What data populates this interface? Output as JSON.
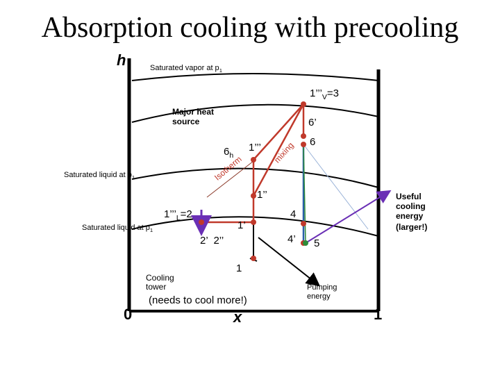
{
  "title": "Absorption cooling with precooling",
  "axes": {
    "y_label": "h",
    "x_label": "x",
    "x_min": "0",
    "x_max": "1"
  },
  "labels": {
    "sat_vapor": "Saturated vapor at p",
    "sat_vapor_sub": "1",
    "sat_liquid_upper": "Saturated liquid at p",
    "sat_liquid_upper_sub": "1",
    "sat_liquid_lower": "Saturated liquid at p",
    "sat_liquid_lower_sub": "1",
    "major_heat_source": "Major heat source",
    "isotherm": "Isotherm",
    "mixing": "mixing",
    "useful_cooling": "Useful cooling energy",
    "useful_cooling_note": "(larger!)",
    "cooling_tower": "Cooling tower",
    "cooling_tower_note": "(needs to cool more!)",
    "pumping_energy": "Pumping energy"
  },
  "points": {
    "p1V3_main": "1’’’",
    "p1V3_sub": "V",
    "p1V3_tail": "=3",
    "p6prime": "6’",
    "p6": "6",
    "p6h_main": "6",
    "p6h_sub": "h",
    "p1ppp": "1’’’",
    "p1pp": "1’’",
    "p1L2_main": "1’’’",
    "p1L2_sub": "L",
    "p1L2_tail": "=2",
    "p1prime": "1’",
    "p4": "4",
    "p2p_2pp": "2’  2’’",
    "p4prime": "4’",
    "p5": "5",
    "p1": "1"
  },
  "colors": {
    "accent": "#c0392b",
    "arrow": "#6a2fb5",
    "line": "#000000"
  }
}
